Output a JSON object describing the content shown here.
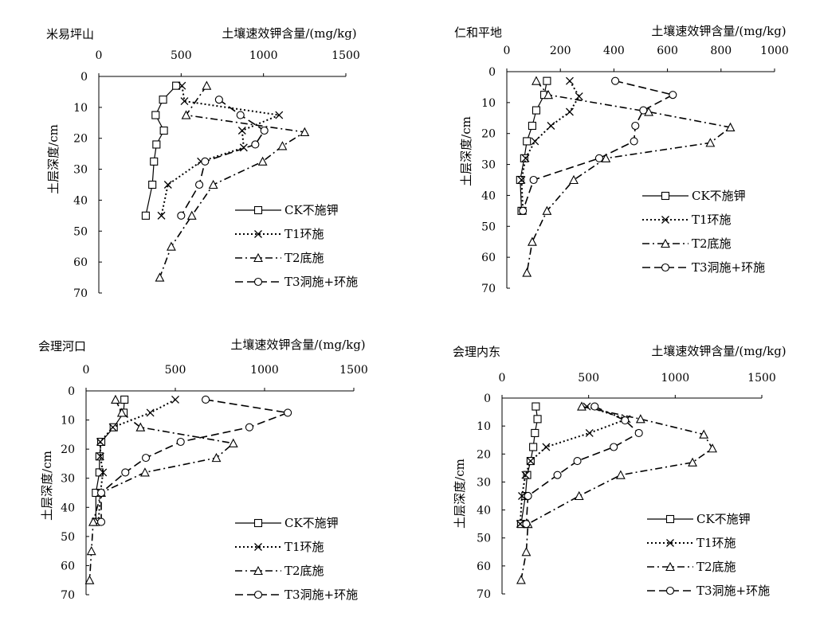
{
  "chart_data": [
    {
      "type": "line",
      "title": "米易坪山",
      "xlabel": "土壤速效钾含量/(mg/kg)",
      "ylabel": "土层深度/cm",
      "xlim": [
        0,
        1500
      ],
      "ylim": [
        0,
        70
      ],
      "xticks": [
        "0",
        "500",
        "1000",
        "1500"
      ],
      "yticks": [
        "0",
        "10",
        "20",
        "30",
        "40",
        "50",
        "60",
        "70"
      ],
      "legend": "bottom-right",
      "series": [
        {
          "name": "CK不施钾",
          "points": [
            [
              470,
              3
            ],
            [
              390,
              7.5
            ],
            [
              345,
              12.5
            ],
            [
              395,
              17.5
            ],
            [
              350,
              22
            ],
            [
              335,
              27.5
            ],
            [
              325,
              35
            ],
            [
              285,
              45
            ]
          ]
        },
        {
          "name": "T1环施",
          "points": [
            [
              505,
              3
            ],
            [
              520,
              8
            ],
            [
              1095,
              12.5
            ],
            [
              870,
              17.5
            ],
            [
              880,
              23
            ],
            [
              620,
              27.5
            ],
            [
              420,
              35
            ],
            [
              380,
              45
            ]
          ]
        },
        {
          "name": "T2底施",
          "points": [
            [
              655,
              3
            ],
            [
              530,
              12.5
            ],
            [
              1250,
              18
            ],
            [
              1115,
              22.5
            ],
            [
              995,
              27.5
            ],
            [
              695,
              35
            ],
            [
              565,
              45
            ],
            [
              440,
              55
            ],
            [
              370,
              65
            ]
          ]
        },
        {
          "name": "T3洞施+环施",
          "points": [
            [
              730,
              7.5
            ],
            [
              860,
              12.5
            ],
            [
              1005,
              17.5
            ],
            [
              950,
              22
            ],
            [
              645,
              27.5
            ],
            [
              610,
              35
            ],
            [
              500,
              45
            ]
          ]
        }
      ]
    },
    {
      "type": "line",
      "title": "仁和平地",
      "xlabel": "土壤速效钾含量/(mg/kg)",
      "ylabel": "土层深度/cm",
      "xlim": [
        0,
        1000
      ],
      "ylim": [
        0,
        70
      ],
      "xticks": [
        "0",
        "200",
        "400",
        "600",
        "800",
        "1000"
      ],
      "yticks": [
        "0",
        "10",
        "20",
        "30",
        "40",
        "50",
        "60",
        "70"
      ],
      "legend": "bottom-right",
      "series": [
        {
          "name": "CK不施钾",
          "points": [
            [
              150,
              3
            ],
            [
              140,
              7.5
            ],
            [
              110,
              12.5
            ],
            [
              95,
              17.5
            ],
            [
              75,
              22.5
            ],
            [
              65,
              28
            ],
            [
              50,
              35
            ],
            [
              55,
              45
            ]
          ]
        },
        {
          "name": "T1环施",
          "points": [
            [
              235,
              3
            ],
            [
              270,
              8
            ],
            [
              235,
              13
            ],
            [
              165,
              17.5
            ],
            [
              105,
              22.5
            ],
            [
              70,
              28
            ],
            [
              55,
              35
            ],
            [
              60,
              45
            ]
          ]
        },
        {
          "name": "T2底施",
          "points": [
            [
              110,
              3
            ],
            [
              155,
              7.5
            ],
            [
              530,
              13
            ],
            [
              835,
              18
            ],
            [
              760,
              23
            ],
            [
              370,
              28
            ],
            [
              250,
              35
            ],
            [
              150,
              45
            ],
            [
              95,
              55
            ],
            [
              75,
              65
            ]
          ]
        },
        {
          "name": "T3洞施+环施",
          "points": [
            [
              405,
              3
            ],
            [
              620,
              7.5
            ],
            [
              510,
              12.5
            ],
            [
              480,
              17.5
            ],
            [
              475,
              22.5
            ],
            [
              345,
              28
            ],
            [
              100,
              35
            ],
            [
              60,
              45
            ]
          ]
        }
      ]
    },
    {
      "type": "line",
      "title": "会理河口",
      "xlabel": "土壤速效钾含量/(mg/kg)",
      "ylabel": "土层深度/cm",
      "xlim": [
        0,
        1500
      ],
      "ylim": [
        0,
        70
      ],
      "xticks": [
        "0",
        "500",
        "1000",
        "1500"
      ],
      "yticks": [
        "0",
        "10",
        "20",
        "30",
        "40",
        "50",
        "60",
        "70"
      ],
      "legend": "bottom-right",
      "series": [
        {
          "name": "CK不施钾",
          "points": [
            [
              215,
              3
            ],
            [
              210,
              7.5
            ],
            [
              155,
              12.5
            ],
            [
              85,
              17.5
            ],
            [
              75,
              22.5
            ],
            [
              75,
              28
            ],
            [
              55,
              35
            ],
            [
              55,
              45
            ]
          ]
        },
        {
          "name": "T1环施",
          "points": [
            [
              500,
              3
            ],
            [
              360,
              7.5
            ],
            [
              150,
              12.5
            ],
            [
              80,
              17.5
            ],
            [
              80,
              22.5
            ],
            [
              95,
              28
            ],
            [
              80,
              35
            ],
            [
              70,
              45
            ]
          ]
        },
        {
          "name": "T2底施",
          "points": [
            [
              165,
              3
            ],
            [
              200,
              7.5
            ],
            [
              305,
              12.5
            ],
            [
              825,
              18
            ],
            [
              730,
              23
            ],
            [
              330,
              28
            ],
            [
              85,
              35
            ],
            [
              40,
              45
            ],
            [
              30,
              55
            ],
            [
              20,
              65
            ]
          ]
        },
        {
          "name": "T3洞施+环施",
          "points": [
            [
              670,
              3
            ],
            [
              1130,
              7.5
            ],
            [
              915,
              12.5
            ],
            [
              530,
              17.5
            ],
            [
              335,
              23
            ],
            [
              220,
              28
            ],
            [
              85,
              35
            ],
            [
              85,
              45
            ]
          ]
        }
      ]
    },
    {
      "type": "line",
      "title": "会理内东",
      "xlabel": "土壤速效钾含量/(mg/kg)",
      "ylabel": "土层深度/cm",
      "xlim": [
        0,
        1500
      ],
      "ylim": [
        0,
        70
      ],
      "xticks": [
        "0",
        "500",
        "1000",
        "1500"
      ],
      "yticks": [
        "0",
        "10",
        "20",
        "30",
        "40",
        "50",
        "60",
        "70"
      ],
      "legend": "bottom-right",
      "series": [
        {
          "name": "CK不施钾",
          "points": [
            [
              195,
              3
            ],
            [
              205,
              7.5
            ],
            [
              190,
              12.5
            ],
            [
              180,
              17.5
            ],
            [
              165,
              22.5
            ],
            [
              145,
              27.5
            ],
            [
              135,
              35
            ],
            [
              110,
              45
            ]
          ]
        },
        {
          "name": "T1环施",
          "points": [
            [
              490,
              3
            ],
            [
              720,
              7.5
            ],
            [
              505,
              12.5
            ],
            [
              255,
              17.5
            ],
            [
              165,
              22.5
            ],
            [
              135,
              27.5
            ],
            [
              115,
              35
            ],
            [
              105,
              45
            ]
          ]
        },
        {
          "name": "T2底施",
          "points": [
            [
              460,
              3
            ],
            [
              800,
              7.5
            ],
            [
              1165,
              13
            ],
            [
              1215,
              18
            ],
            [
              1100,
              23
            ],
            [
              685,
              27.5
            ],
            [
              445,
              35
            ],
            [
              150,
              45
            ],
            [
              140,
              55
            ],
            [
              110,
              65
            ]
          ]
        },
        {
          "name": "T3洞施+环施",
          "points": [
            [
              535,
              3
            ],
            [
              710,
              8
            ],
            [
              790,
              12.5
            ],
            [
              645,
              17.5
            ],
            [
              435,
              22.5
            ],
            [
              320,
              27.5
            ],
            [
              150,
              35
            ],
            [
              140,
              45
            ]
          ]
        }
      ]
    }
  ]
}
